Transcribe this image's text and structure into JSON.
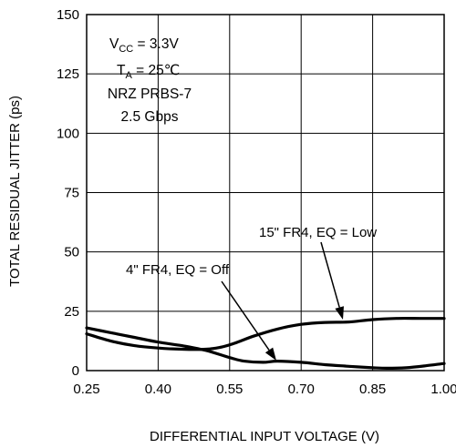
{
  "chart_data": {
    "type": "line",
    "xlabel": "DIFFERENTIAL INPUT VOLTAGE (V)",
    "ylabel": "TOTAL RESIDUAL JITTER (ps)",
    "xlim": [
      0.25,
      1.0
    ],
    "ylim": [
      0,
      150
    ],
    "x_ticks": [
      0.25,
      0.4,
      0.55,
      0.7,
      0.85,
      1.0
    ],
    "x_tick_labels": [
      "0.25",
      "0.40",
      "0.55",
      "0.70",
      "0.85",
      "1.00"
    ],
    "y_ticks": [
      0,
      25,
      50,
      75,
      100,
      125,
      150
    ],
    "y_tick_labels": [
      "0",
      "25",
      "50",
      "75",
      "100",
      "125",
      "150"
    ],
    "grid": true,
    "conditions": {
      "vcc": {
        "base": "V",
        "sub": "CC",
        "rest": " = 3.3V"
      },
      "ta": {
        "base": "T",
        "sub": "A",
        "rest": " = 25℃"
      },
      "pattern": "NRZ PRBS-7",
      "rate": "2.5 Gbps"
    },
    "series": [
      {
        "label": "15\" FR4, EQ = Low",
        "x": [
          0.25,
          0.3,
          0.35,
          0.4,
          0.45,
          0.5,
          0.53,
          0.56,
          0.6,
          0.65,
          0.7,
          0.75,
          0.8,
          0.85,
          0.9,
          0.95,
          1.0
        ],
        "y": [
          15.5,
          12.5,
          10.5,
          9.5,
          9,
          9,
          9.8,
          11.5,
          14.5,
          17.5,
          19.5,
          20.3,
          20.5,
          21.5,
          22,
          22,
          22
        ]
      },
      {
        "label": "4\" FR4, EQ = Off",
        "x": [
          0.25,
          0.3,
          0.35,
          0.4,
          0.45,
          0.5,
          0.55,
          0.58,
          0.62,
          0.65,
          0.7,
          0.75,
          0.8,
          0.85,
          0.88,
          0.92,
          0.96,
          1.0
        ],
        "y": [
          18,
          16,
          14,
          12,
          10.5,
          8.5,
          5.5,
          4,
          3.5,
          4,
          3.5,
          2.5,
          1.8,
          1.2,
          1,
          1.2,
          2,
          3
        ]
      }
    ]
  }
}
